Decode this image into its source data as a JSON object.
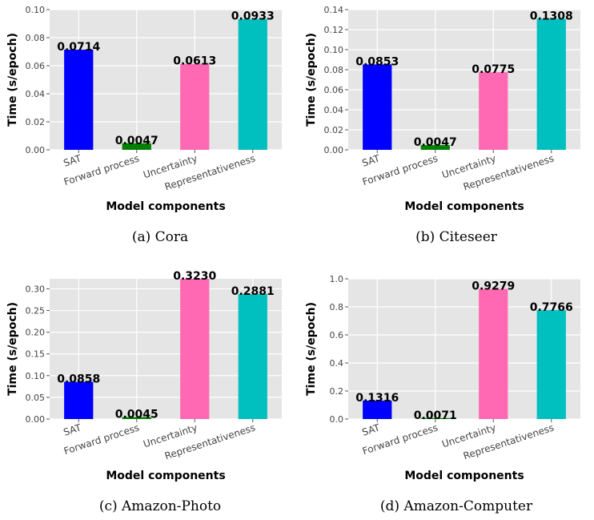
{
  "chart_data": [
    {
      "type": "bar",
      "caption": "(a) Cora",
      "categories": [
        "SAT",
        "Forward process",
        "Uncertainty",
        "Representativeness"
      ],
      "values": [
        0.0714,
        0.0047,
        0.0613,
        0.0933
      ],
      "value_labels": [
        "0.0714",
        "0.0047",
        "0.0613",
        "0.0933"
      ],
      "colors": [
        "#0000ff",
        "#008000",
        "#ff69b4",
        "#00bfbf"
      ],
      "xlabel": "Model components",
      "ylabel": "Time (s/epoch)",
      "ylim": [
        0,
        0.1
      ],
      "yticks": [
        "0.00",
        "0.02",
        "0.04",
        "0.06",
        "0.08",
        "0.10"
      ],
      "grid": true
    },
    {
      "type": "bar",
      "caption": "(b) Citeseer",
      "categories": [
        "SAT",
        "Forward process",
        "Uncertainty",
        "Representativeness"
      ],
      "values": [
        0.0853,
        0.0047,
        0.0775,
        0.1308
      ],
      "value_labels": [
        "0.0853",
        "0.0047",
        "0.0775",
        "0.1308"
      ],
      "colors": [
        "#0000ff",
        "#008000",
        "#ff69b4",
        "#00bfbf"
      ],
      "xlabel": "Model components",
      "ylabel": "Time (s/epoch)",
      "ylim": [
        0,
        0.14
      ],
      "yticks": [
        "0.00",
        "0.02",
        "0.04",
        "0.06",
        "0.08",
        "0.10",
        "0.12",
        "0.14"
      ],
      "grid": true
    },
    {
      "type": "bar",
      "caption": "(c) Amazon-Photo",
      "categories": [
        "SAT",
        "Forward process",
        "Uncertainty",
        "Representativeness"
      ],
      "values": [
        0.0858,
        0.0045,
        0.323,
        0.2881
      ],
      "value_labels": [
        "0.0858",
        "0.0045",
        "0.3230",
        "0.2881"
      ],
      "colors": [
        "#0000ff",
        "#008000",
        "#ff69b4",
        "#00bfbf"
      ],
      "xlabel": "Model components",
      "ylabel": "Time (s/epoch)",
      "ylim": [
        0,
        0.323
      ],
      "yticks": [
        "0.00",
        "0.05",
        "0.10",
        "0.15",
        "0.20",
        "0.25",
        "0.30"
      ],
      "grid": true
    },
    {
      "type": "bar",
      "caption": "(d) Amazon-Computer",
      "categories": [
        "SAT",
        "Forward process",
        "Uncertainty",
        "Representativeness"
      ],
      "values": [
        0.1316,
        0.0071,
        0.9279,
        0.7766
      ],
      "value_labels": [
        "0.1316",
        "0.0071",
        "0.9279",
        "0.7766"
      ],
      "colors": [
        "#0000ff",
        "#008000",
        "#ff69b4",
        "#00bfbf"
      ],
      "xlabel": "Model components",
      "ylabel": "Time (s/epoch)",
      "ylim": [
        0,
        1.0
      ],
      "yticks": [
        "0.0",
        "0.2",
        "0.4",
        "0.6",
        "0.8",
        "1.0"
      ],
      "grid": true
    }
  ]
}
